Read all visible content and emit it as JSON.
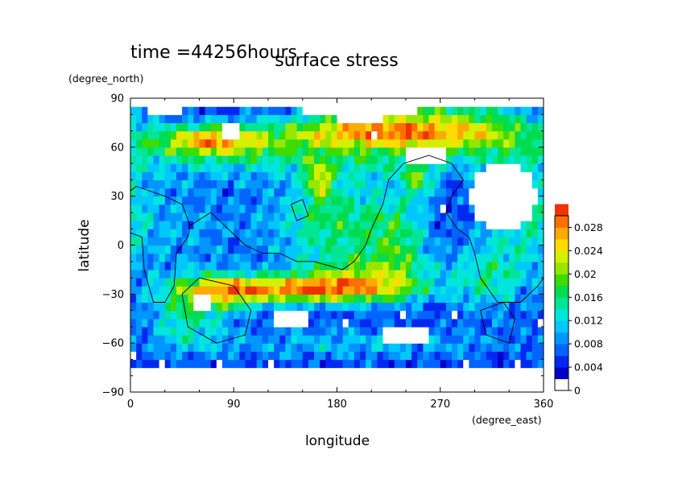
{
  "chart_data": {
    "type": "heatmap",
    "title": "surface stress",
    "subtitle": "time =44256hours",
    "xlabel": "longitude",
    "ylabel": "latitude",
    "x_units": "(degree_east)",
    "y_units": "(degree_north)",
    "xlim": [
      0,
      360
    ],
    "ylim": [
      -90,
      90
    ],
    "x_ticks": [
      "0",
      "90",
      "180",
      "270",
      "360"
    ],
    "y_ticks": [
      "90",
      "60",
      "30",
      "0",
      "−30",
      "−60",
      "−90"
    ],
    "x_tick_values": [
      0,
      90,
      180,
      270,
      360
    ],
    "y_tick_values": [
      90,
      60,
      30,
      0,
      -30,
      -60,
      -90
    ],
    "colorbar": {
      "min": 0,
      "max": 0.03,
      "step": 0.002,
      "labels": [
        "0.028",
        "0.024",
        "0.02",
        "0.016",
        "0.012",
        "0.008",
        "0.004",
        "0"
      ],
      "label_values": [
        0.028,
        0.024,
        0.02,
        0.016,
        0.012,
        0.008,
        0.004,
        0
      ],
      "colors": [
        "#ffffff",
        "#0000c8",
        "#0028f0",
        "#0064ff",
        "#0096ff",
        "#00c8ff",
        "#00e6dc",
        "#00e696",
        "#00dc50",
        "#3cdc00",
        "#96e600",
        "#d2f000",
        "#ffdc00",
        "#ffaa00",
        "#ff6e00",
        "#f03200"
      ]
    },
    "field_features": [
      {
        "lon": 210,
        "lat": 70,
        "amp": 0.02,
        "slon": 60,
        "slat": 7
      },
      {
        "lon": 70,
        "lat": 65,
        "amp": 0.018,
        "slon": 35,
        "slat": 7
      },
      {
        "lon": 300,
        "lat": 70,
        "amp": 0.011,
        "slon": 45,
        "slat": 8
      },
      {
        "lon": 180,
        "lat": 55,
        "amp": 0.009,
        "slon": 150,
        "slat": 10
      },
      {
        "lon": 250,
        "lat": 83,
        "amp": 0.008,
        "slon": 70,
        "slat": 5
      },
      {
        "lon": 150,
        "lat": -27,
        "amp": 0.019,
        "slon": 60,
        "slat": 6
      },
      {
        "lon": 80,
        "lat": -28,
        "amp": 0.012,
        "slon": 30,
        "slat": 8
      },
      {
        "lon": 50,
        "lat": -45,
        "amp": 0.009,
        "slon": 25,
        "slat": 14
      },
      {
        "lon": 200,
        "lat": -20,
        "amp": 0.011,
        "slon": 40,
        "slat": 10
      },
      {
        "lon": 235,
        "lat": 0,
        "amp": 0.009,
        "slon": 18,
        "slat": 20
      },
      {
        "lon": 180,
        "lat": 15,
        "amp": 0.012,
        "slon": 40,
        "slat": 20
      },
      {
        "lon": 165,
        "lat": 40,
        "amp": 0.012,
        "slon": 8,
        "slat": 8
      },
      {
        "lon": 250,
        "lat": 40,
        "amp": 0.01,
        "slon": 10,
        "slat": 8
      },
      {
        "lon": 310,
        "lat": -20,
        "amp": 0.009,
        "slon": 25,
        "slat": 15
      },
      {
        "lon": 200,
        "lat": -60,
        "amp": 0.006,
        "slon": 110,
        "slat": 8
      },
      {
        "lon": 340,
        "lat": 25,
        "amp": 0.008,
        "slon": 25,
        "slat": 25
      },
      {
        "lon": 40,
        "lat": 10,
        "amp": 0.005,
        "slon": 50,
        "slat": 25
      }
    ],
    "white_zones": [
      {
        "lon": 200,
        "lat": 83,
        "rlon": 52,
        "rlat": 6
      },
      {
        "lon": 88,
        "lat": 70,
        "rlon": 14,
        "rlat": 3
      },
      {
        "lon": 30,
        "lat": 85,
        "rlon": 30,
        "rlat": 3
      },
      {
        "lon": 325,
        "lat": 30,
        "rlon": 28,
        "rlat": 22
      },
      {
        "lon": 258,
        "lat": 55,
        "rlon": 18,
        "rlat": 6
      },
      {
        "lon": 240,
        "lat": -55,
        "rlon": 20,
        "rlat": 6
      },
      {
        "lon": 140,
        "lat": -45,
        "rlon": 18,
        "rlat": 4
      },
      {
        "lon": 62,
        "lat": -36,
        "rlon": 8,
        "rlat": 6
      }
    ],
    "land_outlines": [
      {
        "name": "africa",
        "points": [
          [
            5,
            36
          ],
          [
            30,
            30
          ],
          [
            45,
            25
          ],
          [
            52,
            12
          ],
          [
            50,
            5
          ],
          [
            40,
            -5
          ],
          [
            38,
            -25
          ],
          [
            30,
            -35
          ],
          [
            20,
            -35
          ],
          [
            12,
            -15
          ],
          [
            10,
            5
          ],
          [
            -10,
            10
          ],
          [
            -15,
            25
          ],
          [
            5,
            36
          ]
        ]
      },
      {
        "name": "asia",
        "points": [
          [
            52,
            12
          ],
          [
            70,
            20
          ],
          [
            85,
            10
          ],
          [
            100,
            0
          ],
          [
            115,
            -5
          ],
          [
            130,
            -5
          ],
          [
            145,
            -10
          ],
          [
            160,
            -10
          ],
          [
            185,
            -15
          ],
          [
            195,
            -10
          ],
          [
            205,
            0
          ],
          [
            210,
            10
          ],
          [
            220,
            25
          ],
          [
            225,
            40
          ],
          [
            238,
            50
          ],
          [
            260,
            55
          ],
          [
            280,
            50
          ],
          [
            290,
            40
          ],
          [
            280,
            30
          ],
          [
            275,
            20
          ],
          [
            285,
            10
          ]
        ]
      },
      {
        "name": "americas",
        "points": [
          [
            285,
            10
          ],
          [
            295,
            5
          ],
          [
            300,
            -5
          ],
          [
            305,
            -20
          ],
          [
            320,
            -35
          ],
          [
            340,
            -35
          ],
          [
            355,
            -25
          ],
          [
            360,
            -20
          ]
        ]
      },
      {
        "name": "ring-southwest",
        "points": [
          [
            60,
            -20
          ],
          [
            90,
            -25
          ],
          [
            105,
            -40
          ],
          [
            100,
            -55
          ],
          [
            75,
            -60
          ],
          [
            50,
            -50
          ],
          [
            45,
            -30
          ],
          [
            60,
            -20
          ]
        ]
      },
      {
        "name": "ring-southeast",
        "points": [
          [
            305,
            -40
          ],
          [
            325,
            -35
          ],
          [
            335,
            -45
          ],
          [
            330,
            -60
          ],
          [
            310,
            -55
          ],
          [
            305,
            -40
          ]
        ]
      },
      {
        "name": "small-island",
        "points": [
          [
            140,
            25
          ],
          [
            150,
            28
          ],
          [
            155,
            18
          ],
          [
            145,
            15
          ],
          [
            140,
            25
          ]
        ]
      }
    ]
  }
}
